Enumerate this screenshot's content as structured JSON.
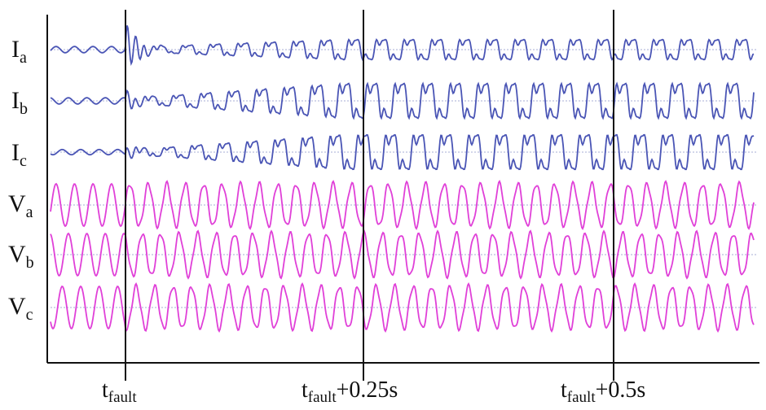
{
  "chart_data": {
    "type": "line",
    "title": "",
    "xlabel": "",
    "ylabel": "",
    "x_markers": [
      {
        "time_s": 0.0,
        "base": "t",
        "sub": "fault",
        "suffix": ""
      },
      {
        "time_s": 0.25,
        "base": "t",
        "sub": "fault",
        "suffix": "+0.25s"
      },
      {
        "time_s": 0.5,
        "base": "t",
        "sub": "fault",
        "suffix": "+0.5s"
      }
    ],
    "xlim_s": [
      -0.075,
      0.63
    ],
    "grid": false,
    "series": [
      {
        "id": "ia",
        "base": "I",
        "sub": "a",
        "kind": "current",
        "color": "#4a55b5",
        "pre_amp": 0.12,
        "post_amp": 0.55,
        "transient_amp": 1.0
      },
      {
        "id": "ib",
        "base": "I",
        "sub": "b",
        "kind": "current",
        "color": "#4a55b5",
        "pre_amp": 0.12,
        "post_amp": 0.95,
        "transient_amp": 0.35
      },
      {
        "id": "ic",
        "base": "I",
        "sub": "c",
        "kind": "current",
        "color": "#4a55b5",
        "pre_amp": 0.1,
        "post_amp": 0.95,
        "transient_amp": 0.25
      },
      {
        "id": "va",
        "base": "V",
        "sub": "a",
        "kind": "voltage",
        "color": "#e040d8",
        "pre_amp": 1.0,
        "post_amp": 1.0,
        "transient_amp": 0.0
      },
      {
        "id": "vb",
        "base": "V",
        "sub": "b",
        "kind": "voltage",
        "color": "#e040d8",
        "pre_amp": 1.0,
        "post_amp": 1.0,
        "transient_amp": 0.0
      },
      {
        "id": "vc",
        "base": "V",
        "sub": "c",
        "kind": "voltage",
        "color": "#e040d8",
        "pre_amp": 1.0,
        "post_amp": 1.0,
        "transient_amp": 0.0
      }
    ]
  }
}
